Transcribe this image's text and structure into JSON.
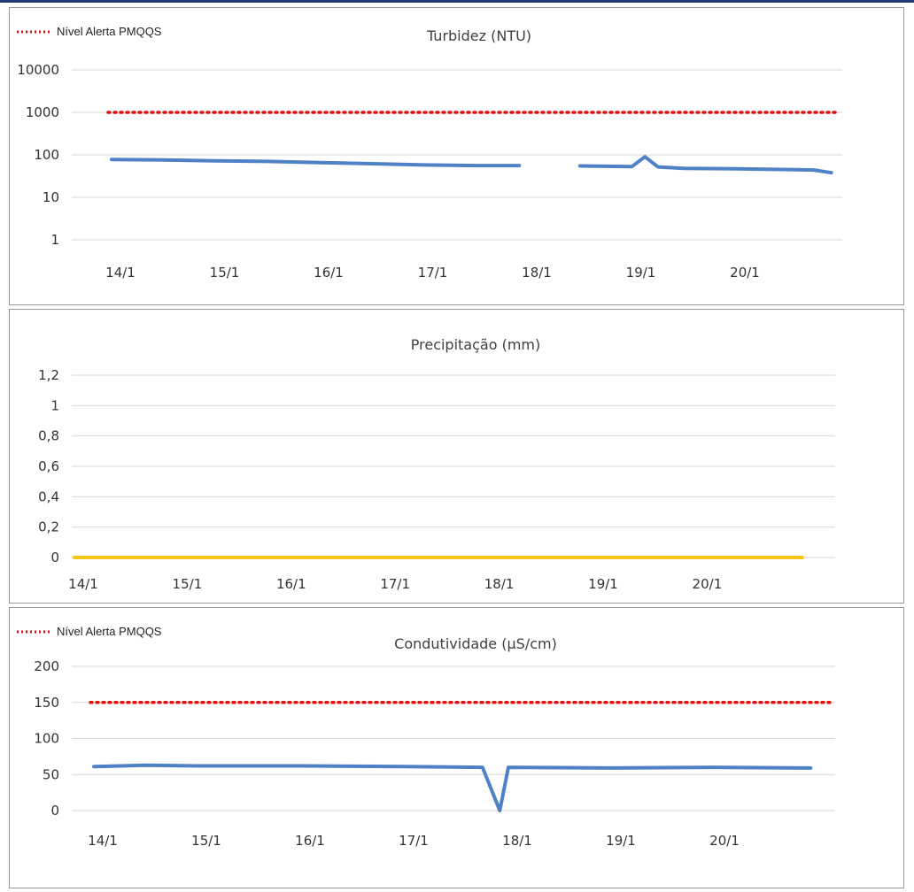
{
  "colors": {
    "series_blue": "#4f81c7",
    "precip_yellow": "#f5c518",
    "alert_red": "#e01010",
    "grid": "#d9d9d9",
    "frame_top": "#1f3a73"
  },
  "chart_data": [
    {
      "id": "turbidez",
      "type": "line",
      "title": "Turbidez (NTU)",
      "legend": [
        "Nível Alerta PMQQS"
      ],
      "legend_position": "top-left",
      "y_scale": "log",
      "ylim": [
        1,
        10000
      ],
      "yticks": [
        "1",
        "10",
        "100",
        "1000",
        "10000"
      ],
      "x_ticks": [
        "14/1",
        "15/1",
        "16/1",
        "17/1",
        "18/1",
        "19/1",
        "20/1"
      ],
      "grid": true,
      "alert_level": 1000,
      "series": [
        {
          "x": [
            "14/1 00h",
            "14/1 12h",
            "15/1 00h",
            "15/1 12h",
            "16/1 00h",
            "16/1 12h",
            "17/1 00h",
            "17/1 12h",
            "17/1 22h",
            "18/1 00h",
            "18/1 12h",
            "19/1 00h",
            "19/1 03h",
            "19/1 06h",
            "19/1 12h",
            "20/1 00h",
            "20/1 12h",
            "20/1 18h",
            "20/1 22h"
          ],
          "values": [
            78,
            76,
            72,
            70,
            66,
            62,
            58,
            56,
            56,
            null,
            55,
            53,
            90,
            52,
            48,
            47,
            45,
            44,
            38
          ]
        }
      ]
    },
    {
      "id": "precipitacao",
      "type": "line",
      "title": "Precipitação (mm)",
      "ylim": [
        0,
        1.2
      ],
      "yticks": [
        "0",
        "0,2",
        "0,4",
        "0,6",
        "0,8",
        "1",
        "1,2"
      ],
      "x_ticks": [
        "14/1",
        "15/1",
        "16/1",
        "17/1",
        "18/1",
        "19/1",
        "20/1"
      ],
      "grid": true,
      "series": [
        {
          "x": [
            "14/1 00h",
            "20/1 24h"
          ],
          "values": [
            0,
            0
          ]
        }
      ]
    },
    {
      "id": "condutividade",
      "type": "line",
      "title": "Condutividade (µS/cm)",
      "legend": [
        "Nível Alerta PMQQS"
      ],
      "legend_position": "top-left",
      "ylim": [
        0,
        200
      ],
      "yticks": [
        "0",
        "50",
        "100",
        "150",
        "200"
      ],
      "x_ticks": [
        "14/1",
        "15/1",
        "16/1",
        "17/1",
        "18/1",
        "19/1",
        "20/1"
      ],
      "grid": true,
      "alert_level": 150,
      "series": [
        {
          "x": [
            "14/1 00h",
            "14/1 12h",
            "15/1 00h",
            "16/1 00h",
            "17/1 00h",
            "17/1 18h",
            "17/1 22h",
            "18/1 00h",
            "19/1 00h",
            "20/1 00h",
            "20/1 22h"
          ],
          "values": [
            61,
            63,
            62,
            62,
            61,
            60,
            0,
            60,
            59,
            60,
            59
          ]
        }
      ]
    }
  ]
}
